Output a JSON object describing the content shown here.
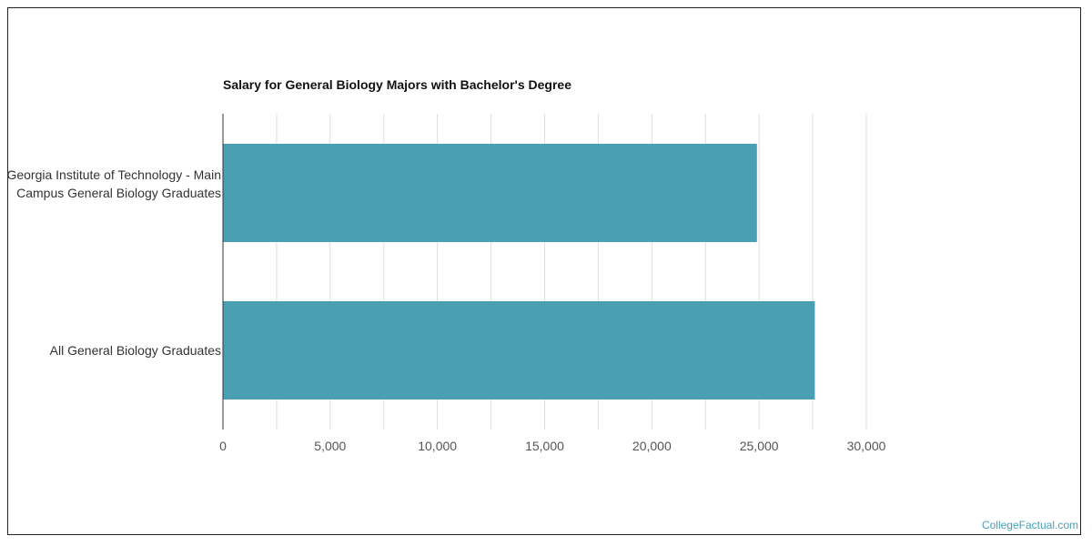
{
  "chart_data": {
    "type": "bar",
    "orientation": "horizontal",
    "title": "Salary for General Biology Majors with Bachelor's Degree",
    "categories": [
      "Georgia Institute of Technology - Main Campus General Biology Graduates",
      "All General Biology Graduates"
    ],
    "values": [
      24900,
      27600
    ],
    "xticks": [
      "0",
      "5,000",
      "10,000",
      "15,000",
      "20,000",
      "25,000",
      "30,000"
    ],
    "xlim": [
      0,
      30000
    ],
    "grid": true,
    "bar_color": "#4aa0b2"
  },
  "watermark": "CollegeFactual.com"
}
